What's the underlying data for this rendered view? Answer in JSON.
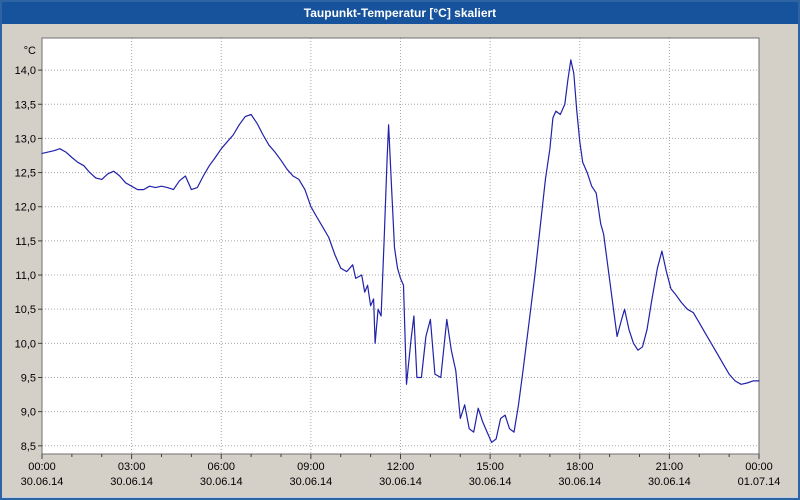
{
  "window": {
    "title": "Taupunkt-Temperatur [°C] skaliert"
  },
  "colors": {
    "titlebar": "#17539d",
    "frame": "#2e63a4",
    "background": "#d4d0c8",
    "plot_bg": "#ffffff",
    "grid": "#a8a8a8",
    "axis": "#707070",
    "tick": "#404040",
    "line": "#2121aa"
  },
  "chart_data": {
    "type": "line",
    "title": "Taupunkt-Temperatur [°C] skaliert",
    "ylabel": "°C",
    "ylim": [
      8.38,
      14.47
    ],
    "xlim_hours": [
      0,
      24
    ],
    "grid": "dotted",
    "legend": "none",
    "y_ticks": [
      {
        "value": 8.5,
        "label": "8,5"
      },
      {
        "value": 9.0,
        "label": "9,0"
      },
      {
        "value": 9.5,
        "label": "9,5"
      },
      {
        "value": 10.0,
        "label": "10,0"
      },
      {
        "value": 10.5,
        "label": "10,5"
      },
      {
        "value": 11.0,
        "label": "11,0"
      },
      {
        "value": 11.5,
        "label": "11,5"
      },
      {
        "value": 12.0,
        "label": "12,0"
      },
      {
        "value": 12.5,
        "label": "12,5"
      },
      {
        "value": 13.0,
        "label": "13,0"
      },
      {
        "value": 13.5,
        "label": "13,5"
      },
      {
        "value": 14.0,
        "label": "14,0"
      }
    ],
    "x_ticks": [
      {
        "hour": 0,
        "time": "00:00",
        "date": "30.06.14"
      },
      {
        "hour": 3,
        "time": "03:00",
        "date": "30.06.14"
      },
      {
        "hour": 6,
        "time": "06:00",
        "date": "30.06.14"
      },
      {
        "hour": 9,
        "time": "09:00",
        "date": "30.06.14"
      },
      {
        "hour": 12,
        "time": "12:00",
        "date": "30.06.14"
      },
      {
        "hour": 15,
        "time": "15:00",
        "date": "30.06.14"
      },
      {
        "hour": 18,
        "time": "18:00",
        "date": "30.06.14"
      },
      {
        "hour": 21,
        "time": "21:00",
        "date": "30.06.14"
      },
      {
        "hour": 24,
        "time": "00:00",
        "date": "01.07.14"
      }
    ],
    "series": [
      {
        "name": "Taupunkt-Temperatur",
        "color": "#2121aa",
        "points": [
          [
            0.0,
            12.78
          ],
          [
            0.2,
            12.8
          ],
          [
            0.4,
            12.82
          ],
          [
            0.6,
            12.85
          ],
          [
            0.8,
            12.8
          ],
          [
            1.0,
            12.72
          ],
          [
            1.2,
            12.65
          ],
          [
            1.4,
            12.6
          ],
          [
            1.6,
            12.5
          ],
          [
            1.8,
            12.42
          ],
          [
            2.0,
            12.4
          ],
          [
            2.2,
            12.48
          ],
          [
            2.4,
            12.52
          ],
          [
            2.6,
            12.45
          ],
          [
            2.8,
            12.35
          ],
          [
            3.0,
            12.3
          ],
          [
            3.2,
            12.25
          ],
          [
            3.4,
            12.25
          ],
          [
            3.6,
            12.3
          ],
          [
            3.8,
            12.28
          ],
          [
            4.0,
            12.3
          ],
          [
            4.2,
            12.28
          ],
          [
            4.4,
            12.25
          ],
          [
            4.6,
            12.38
          ],
          [
            4.8,
            12.45
          ],
          [
            5.0,
            12.25
          ],
          [
            5.2,
            12.28
          ],
          [
            5.4,
            12.45
          ],
          [
            5.6,
            12.6
          ],
          [
            5.8,
            12.72
          ],
          [
            6.0,
            12.85
          ],
          [
            6.2,
            12.95
          ],
          [
            6.4,
            13.05
          ],
          [
            6.6,
            13.2
          ],
          [
            6.8,
            13.32
          ],
          [
            7.0,
            13.35
          ],
          [
            7.2,
            13.22
          ],
          [
            7.4,
            13.05
          ],
          [
            7.6,
            12.9
          ],
          [
            7.8,
            12.8
          ],
          [
            8.0,
            12.68
          ],
          [
            8.2,
            12.55
          ],
          [
            8.4,
            12.45
          ],
          [
            8.6,
            12.4
          ],
          [
            8.8,
            12.25
          ],
          [
            9.0,
            12.0
          ],
          [
            9.2,
            11.85
          ],
          [
            9.4,
            11.7
          ],
          [
            9.6,
            11.55
          ],
          [
            9.8,
            11.3
          ],
          [
            10.0,
            11.1
          ],
          [
            10.2,
            11.05
          ],
          [
            10.4,
            11.15
          ],
          [
            10.5,
            10.95
          ],
          [
            10.7,
            11.0
          ],
          [
            10.8,
            10.75
          ],
          [
            10.9,
            10.85
          ],
          [
            11.0,
            10.55
          ],
          [
            11.1,
            10.65
          ],
          [
            11.15,
            10.0
          ],
          [
            11.25,
            10.5
          ],
          [
            11.35,
            10.4
          ],
          [
            11.45,
            11.5
          ],
          [
            11.55,
            12.7
          ],
          [
            11.6,
            13.2
          ],
          [
            11.7,
            12.3
          ],
          [
            11.8,
            11.4
          ],
          [
            11.9,
            11.1
          ],
          [
            12.0,
            10.95
          ],
          [
            12.1,
            10.85
          ],
          [
            12.2,
            9.4
          ],
          [
            12.35,
            10.05
          ],
          [
            12.45,
            10.4
          ],
          [
            12.55,
            9.5
          ],
          [
            12.7,
            9.5
          ],
          [
            12.85,
            10.1
          ],
          [
            13.0,
            10.35
          ],
          [
            13.15,
            9.55
          ],
          [
            13.35,
            9.5
          ],
          [
            13.55,
            10.35
          ],
          [
            13.7,
            9.9
          ],
          [
            13.85,
            9.6
          ],
          [
            14.0,
            8.9
          ],
          [
            14.15,
            9.1
          ],
          [
            14.3,
            8.75
          ],
          [
            14.45,
            8.7
          ],
          [
            14.6,
            9.05
          ],
          [
            14.75,
            8.85
          ],
          [
            14.9,
            8.7
          ],
          [
            15.05,
            8.55
          ],
          [
            15.2,
            8.6
          ],
          [
            15.35,
            8.9
          ],
          [
            15.5,
            8.95
          ],
          [
            15.65,
            8.75
          ],
          [
            15.8,
            8.7
          ],
          [
            15.95,
            9.1
          ],
          [
            16.1,
            9.6
          ],
          [
            16.3,
            10.3
          ],
          [
            16.5,
            11.0
          ],
          [
            16.7,
            11.8
          ],
          [
            16.85,
            12.4
          ],
          [
            17.0,
            12.85
          ],
          [
            17.1,
            13.3
          ],
          [
            17.2,
            13.4
          ],
          [
            17.35,
            13.35
          ],
          [
            17.5,
            13.5
          ],
          [
            17.6,
            13.85
          ],
          [
            17.7,
            14.15
          ],
          [
            17.8,
            13.95
          ],
          [
            17.9,
            13.4
          ],
          [
            18.0,
            12.95
          ],
          [
            18.1,
            12.65
          ],
          [
            18.25,
            12.5
          ],
          [
            18.4,
            12.3
          ],
          [
            18.55,
            12.2
          ],
          [
            18.7,
            11.75
          ],
          [
            18.8,
            11.6
          ],
          [
            18.95,
            11.1
          ],
          [
            19.1,
            10.6
          ],
          [
            19.25,
            10.1
          ],
          [
            19.4,
            10.35
          ],
          [
            19.5,
            10.5
          ],
          [
            19.65,
            10.2
          ],
          [
            19.8,
            10.0
          ],
          [
            19.95,
            9.9
          ],
          [
            20.1,
            9.95
          ],
          [
            20.25,
            10.2
          ],
          [
            20.4,
            10.6
          ],
          [
            20.6,
            11.1
          ],
          [
            20.75,
            11.35
          ],
          [
            20.9,
            11.05
          ],
          [
            21.05,
            10.8
          ],
          [
            21.2,
            10.72
          ],
          [
            21.4,
            10.6
          ],
          [
            21.6,
            10.5
          ],
          [
            21.8,
            10.45
          ],
          [
            22.0,
            10.3
          ],
          [
            22.2,
            10.15
          ],
          [
            22.4,
            10.0
          ],
          [
            22.6,
            9.85
          ],
          [
            22.8,
            9.7
          ],
          [
            23.0,
            9.55
          ],
          [
            23.2,
            9.45
          ],
          [
            23.4,
            9.4
          ],
          [
            23.6,
            9.42
          ],
          [
            23.8,
            9.45
          ],
          [
            24.0,
            9.45
          ]
        ]
      }
    ]
  }
}
